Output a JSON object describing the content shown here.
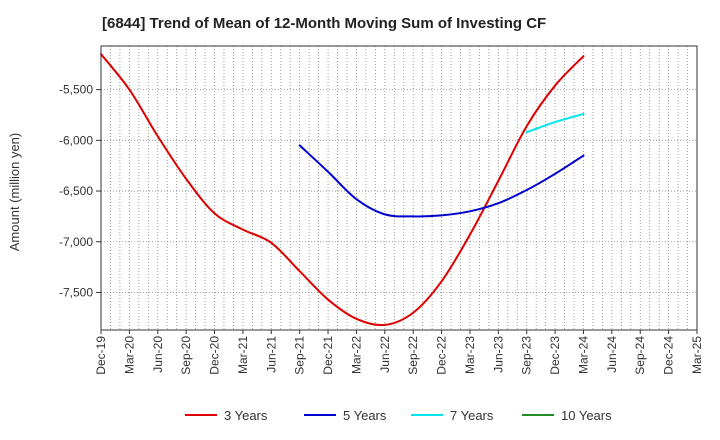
{
  "chart_data": {
    "type": "line",
    "title": "[6844]  Trend of Mean of 12-Month Moving Sum of Investing CF",
    "xlabel": "",
    "ylabel": "Amount (million yen)",
    "ylim": [
      -7870,
      -5070
    ],
    "yticks": [
      -5500,
      -6000,
      -6500,
      -7000,
      -7500
    ],
    "ytick_labels": [
      "-5,500",
      "-6,000",
      "-6,500",
      "-7,000",
      "-7,500"
    ],
    "categories": [
      "Dec-19",
      "Mar-20",
      "Jun-20",
      "Sep-20",
      "Dec-20",
      "Mar-21",
      "Jun-21",
      "Sep-21",
      "Dec-21",
      "Mar-22",
      "Jun-22",
      "Sep-22",
      "Dec-22",
      "Mar-23",
      "Jun-23",
      "Sep-23",
      "Dec-23",
      "Mar-24",
      "Jun-24",
      "Sep-24",
      "Dec-24",
      "Mar-25"
    ],
    "grid": true,
    "legend_position": "bottom",
    "series": [
      {
        "name": "3 Years",
        "color": "#dd0000",
        "values": [
          -5150,
          -5500,
          -5960,
          -6380,
          -6720,
          -6880,
          -7010,
          -7290,
          -7570,
          -7760,
          -7820,
          -7700,
          -7390,
          -6930,
          -6400,
          -5860,
          -5460,
          -5170,
          null,
          null,
          null,
          null
        ]
      },
      {
        "name": "5 Years",
        "color": "#0000cc",
        "values": [
          null,
          null,
          null,
          null,
          null,
          null,
          null,
          -6050,
          -6310,
          -6580,
          -6730,
          -6750,
          -6740,
          -6700,
          -6620,
          -6490,
          -6330,
          -6150,
          null,
          null,
          null,
          null
        ]
      },
      {
        "name": "7 Years",
        "color": "#00e5ee",
        "values": [
          null,
          null,
          null,
          null,
          null,
          null,
          null,
          null,
          null,
          null,
          null,
          null,
          null,
          null,
          null,
          -5920,
          -5820,
          -5740,
          null,
          null,
          null,
          null
        ]
      },
      {
        "name": "10 Years",
        "color": "#228b22",
        "values": [
          null,
          null,
          null,
          null,
          null,
          null,
          null,
          null,
          null,
          null,
          null,
          null,
          null,
          null,
          null,
          null,
          null,
          null,
          null,
          null,
          null,
          null
        ]
      }
    ]
  }
}
